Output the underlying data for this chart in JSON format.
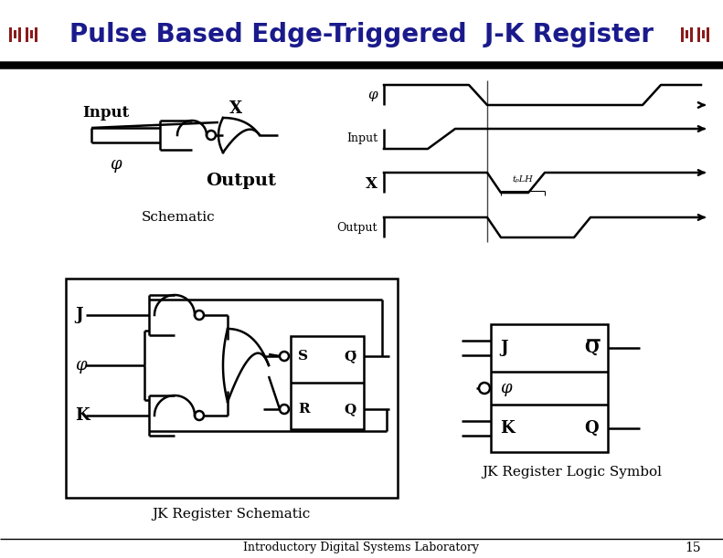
{
  "title": "Pulse Based Edge-Triggered  J-K Register",
  "title_color": "#1a1a8c",
  "title_fontsize": 20,
  "bg_color": "#ffffff",
  "footer_text": "Introductory Digital Systems Laboratory",
  "footer_page": "15",
  "schematic_label": "Schematic",
  "jk_schematic_label": "JK Register Schematic",
  "jk_symbol_label": "JK Register Logic Symbol",
  "input_label": "Input",
  "output_label": "Output",
  "x_label": "X",
  "phi_label": "φ",
  "j_label": "J",
  "k_label": "K",
  "q_label": "Q",
  "s_label": "S",
  "r_label": "R",
  "tplh_label": "tₚLH",
  "line_color": "#000000",
  "mit_logo_color": "#8b1a1a"
}
